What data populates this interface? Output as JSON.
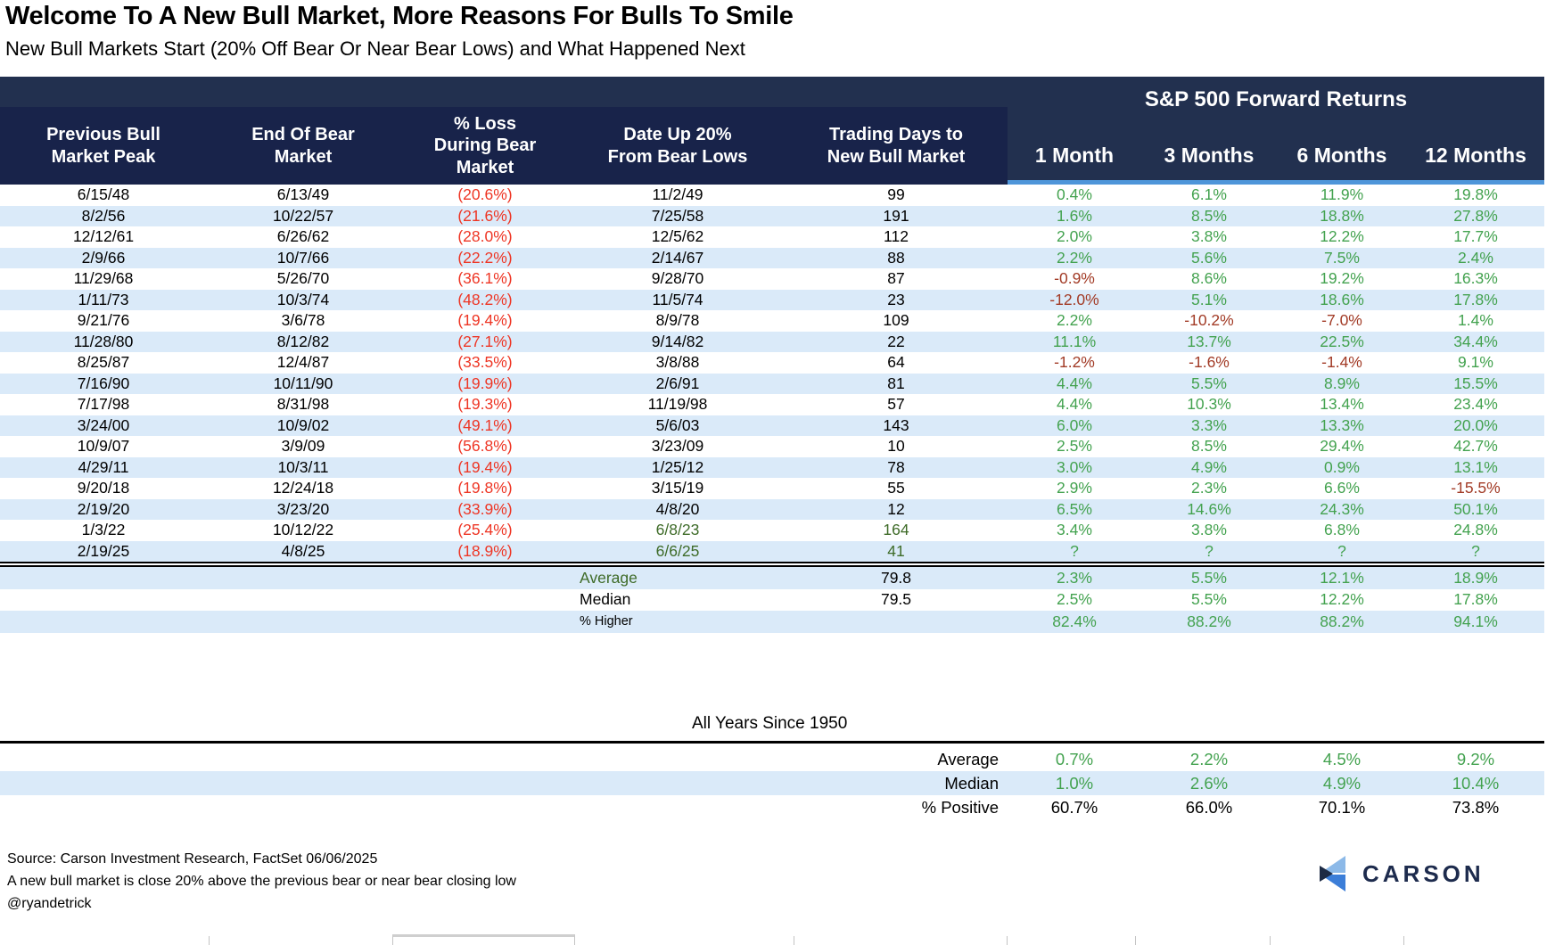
{
  "title": "Welcome To A New Bull Market, More Reasons For Bulls To Smile",
  "subtitle": "New Bull Markets Start (20% Off Bear Or Near Bear Lows) and What Happened Next",
  "chart_data": {
    "type": "table",
    "group_header": "S&P 500 Forward Returns",
    "columns": [
      "Previous Bull\nMarket Peak",
      "End Of Bear\nMarket",
      "% Loss\nDuring Bear\nMarket",
      "Date Up 20%\nFrom Bear Lows",
      "Trading Days to\nNew Bull Market"
    ],
    "month_columns": [
      "1 Month",
      "3 Months",
      "6 Months",
      "12 Months"
    ],
    "rows": [
      [
        "6/15/48",
        "6/13/49",
        "(20.6%)",
        "11/2/49",
        "99",
        "0.4%",
        "6.1%",
        "11.9%",
        "19.8%"
      ],
      [
        "8/2/56",
        "10/22/57",
        "(21.6%)",
        "7/25/58",
        "191",
        "1.6%",
        "8.5%",
        "18.8%",
        "27.8%"
      ],
      [
        "12/12/61",
        "6/26/62",
        "(28.0%)",
        "12/5/62",
        "112",
        "2.0%",
        "3.8%",
        "12.2%",
        "17.7%"
      ],
      [
        "2/9/66",
        "10/7/66",
        "(22.2%)",
        "2/14/67",
        "88",
        "2.2%",
        "5.6%",
        "7.5%",
        "2.4%"
      ],
      [
        "11/29/68",
        "5/26/70",
        "(36.1%)",
        "9/28/70",
        "87",
        "-0.9%",
        "8.6%",
        "19.2%",
        "16.3%"
      ],
      [
        "1/11/73",
        "10/3/74",
        "(48.2%)",
        "11/5/74",
        "23",
        "-12.0%",
        "5.1%",
        "18.6%",
        "17.8%"
      ],
      [
        "9/21/76",
        "3/6/78",
        "(19.4%)",
        "8/9/78",
        "109",
        "2.2%",
        "-10.2%",
        "-7.0%",
        "1.4%"
      ],
      [
        "11/28/80",
        "8/12/82",
        "(27.1%)",
        "9/14/82",
        "22",
        "11.1%",
        "13.7%",
        "22.5%",
        "34.4%"
      ],
      [
        "8/25/87",
        "12/4/87",
        "(33.5%)",
        "3/8/88",
        "64",
        "-1.2%",
        "-1.6%",
        "-1.4%",
        "9.1%"
      ],
      [
        "7/16/90",
        "10/11/90",
        "(19.9%)",
        "2/6/91",
        "81",
        "4.4%",
        "5.5%",
        "8.9%",
        "15.5%"
      ],
      [
        "7/17/98",
        "8/31/98",
        "(19.3%)",
        "11/19/98",
        "57",
        "4.4%",
        "10.3%",
        "13.4%",
        "23.4%"
      ],
      [
        "3/24/00",
        "10/9/02",
        "(49.1%)",
        "5/6/03",
        "143",
        "6.0%",
        "3.3%",
        "13.3%",
        "20.0%"
      ],
      [
        "10/9/07",
        "3/9/09",
        "(56.8%)",
        "3/23/09",
        "10",
        "2.5%",
        "8.5%",
        "29.4%",
        "42.7%"
      ],
      [
        "4/29/11",
        "10/3/11",
        "(19.4%)",
        "1/25/12",
        "78",
        "3.0%",
        "4.9%",
        "0.9%",
        "13.1%"
      ],
      [
        "9/20/18",
        "12/24/18",
        "(19.8%)",
        "3/15/19",
        "55",
        "2.9%",
        "2.3%",
        "6.6%",
        "-15.5%"
      ],
      [
        "2/19/20",
        "3/23/20",
        "(33.9%)",
        "4/8/20",
        "12",
        "6.5%",
        "14.6%",
        "24.3%",
        "50.1%"
      ],
      [
        "1/3/22",
        "10/12/22",
        "(25.4%)",
        "6/8/23",
        "164",
        "3.4%",
        "3.8%",
        "6.8%",
        "24.8%"
      ],
      [
        "2/19/25",
        "4/8/25",
        "(18.9%)",
        "6/6/25",
        "41",
        "?",
        "?",
        "?",
        "?"
      ]
    ],
    "ongoing_rows": [
      16,
      17
    ],
    "summary_rows": [
      [
        "Average",
        "79.8",
        "2.3%",
        "5.5%",
        "12.1%",
        "18.9%"
      ],
      [
        "Median",
        "79.5",
        "2.5%",
        "5.5%",
        "12.2%",
        "17.8%"
      ],
      [
        "% Higher",
        "",
        "82.4%",
        "88.2%",
        "88.2%",
        "94.1%"
      ]
    ],
    "all_years": {
      "title": "All Years Since 1950",
      "rows": [
        [
          "Average",
          "0.7%",
          "2.2%",
          "4.5%",
          "9.2%"
        ],
        [
          "Median",
          "1.0%",
          "2.6%",
          "4.9%",
          "10.4%"
        ],
        [
          "% Positive",
          "60.7%",
          "66.0%",
          "70.1%",
          "73.8%"
        ]
      ]
    }
  },
  "footer": {
    "line1": "Source: Carson Investment Research, FactSet 06/06/2025",
    "line2": "A new bull market is close 20% above the previous bear or near bear closing low",
    "line3": "@ryandetrick"
  },
  "logo": {
    "text": "CARSON"
  },
  "colors": {
    "banner": "#22304f",
    "header_block": "#18234a",
    "accent_line": "#4e95d9",
    "row_stripe": "#daeaf9",
    "bear_loss_red": "#ee3524",
    "negative_red": "#a23b26",
    "positive_green": "#43a24f",
    "ongoing_green": "#3e6b28"
  }
}
